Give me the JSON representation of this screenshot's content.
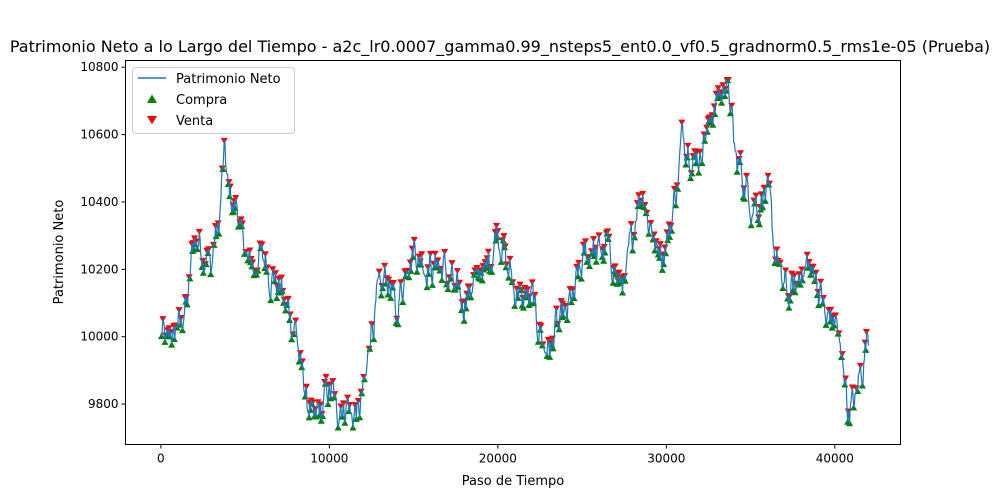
{
  "chart_data": {
    "type": "line",
    "title": "Patrimonio Neto a lo Largo del Tiempo - a2c_lr0.0007_gamma0.99_nsteps5_ent0.0_vf0.5_gradnorm0.5_rms1e-05 (Prueba)",
    "xlabel": "Paso de Tiempo",
    "ylabel": "Patrimonio Neto",
    "xlim": [
      -2100,
      43900
    ],
    "ylim": [
      9680,
      10820
    ],
    "xticks": [
      0,
      10000,
      20000,
      30000,
      40000
    ],
    "yticks": [
      9800,
      10000,
      10200,
      10400,
      10600,
      10800
    ],
    "grid": false,
    "legend_position": "upper left",
    "colors": {
      "line": "#1f77b4",
      "buy": "#008000",
      "sell": "#ff0000"
    },
    "series": [
      {
        "name": "Patrimonio Neto",
        "kind": "line",
        "x": [
          0,
          500,
          1000,
          1500,
          2000,
          2500,
          3000,
          3500,
          3800,
          4000,
          4500,
          5000,
          5500,
          6000,
          6500,
          7000,
          7500,
          8000,
          8500,
          9000,
          9500,
          10000,
          10500,
          11000,
          11500,
          12000,
          12500,
          13000,
          13500,
          14000,
          14500,
          15000,
          15500,
          16000,
          16500,
          17000,
          17500,
          18000,
          18500,
          19000,
          19500,
          20000,
          20500,
          21000,
          21500,
          22000,
          22500,
          23000,
          23500,
          24000,
          24500,
          25000,
          25500,
          26000,
          26500,
          27000,
          27500,
          28000,
          28500,
          29000,
          29500,
          30000,
          30500,
          31000,
          31500,
          32000,
          32500,
          33000,
          33500,
          33800,
          34000,
          34500,
          35000,
          35500,
          36000,
          36500,
          37000,
          37500,
          38000,
          38500,
          39000,
          39500,
          40000,
          40500,
          40800,
          41000,
          41500,
          42000
        ],
        "y": [
          10000,
          9990,
          10030,
          10080,
          10300,
          10250,
          10220,
          10360,
          10570,
          10420,
          10380,
          10250,
          10200,
          10250,
          10180,
          10150,
          10080,
          10020,
          9850,
          9750,
          9780,
          9850,
          9780,
          9800,
          9760,
          9820,
          10030,
          10140,
          10180,
          10060,
          10200,
          10260,
          10220,
          10200,
          10220,
          10180,
          10140,
          10100,
          10160,
          10190,
          10220,
          10320,
          10220,
          10140,
          10110,
          10120,
          10010,
          9950,
          10030,
          10060,
          10120,
          10220,
          10260,
          10250,
          10270,
          10180,
          10150,
          10310,
          10440,
          10340,
          10250,
          10270,
          10400,
          10610,
          10520,
          10540,
          10630,
          10700,
          10750,
          10710,
          10560,
          10480,
          10400,
          10390,
          10440,
          10240,
          10140,
          10130,
          10190,
          10210,
          10160,
          10050,
          10060,
          9910,
          9790,
          9780,
          9880,
          10010
        ]
      },
      {
        "name": "Compra",
        "kind": "marker",
        "marker": "triangle-up"
      },
      {
        "name": "Venta",
        "kind": "marker",
        "marker": "triangle-down"
      }
    ]
  }
}
